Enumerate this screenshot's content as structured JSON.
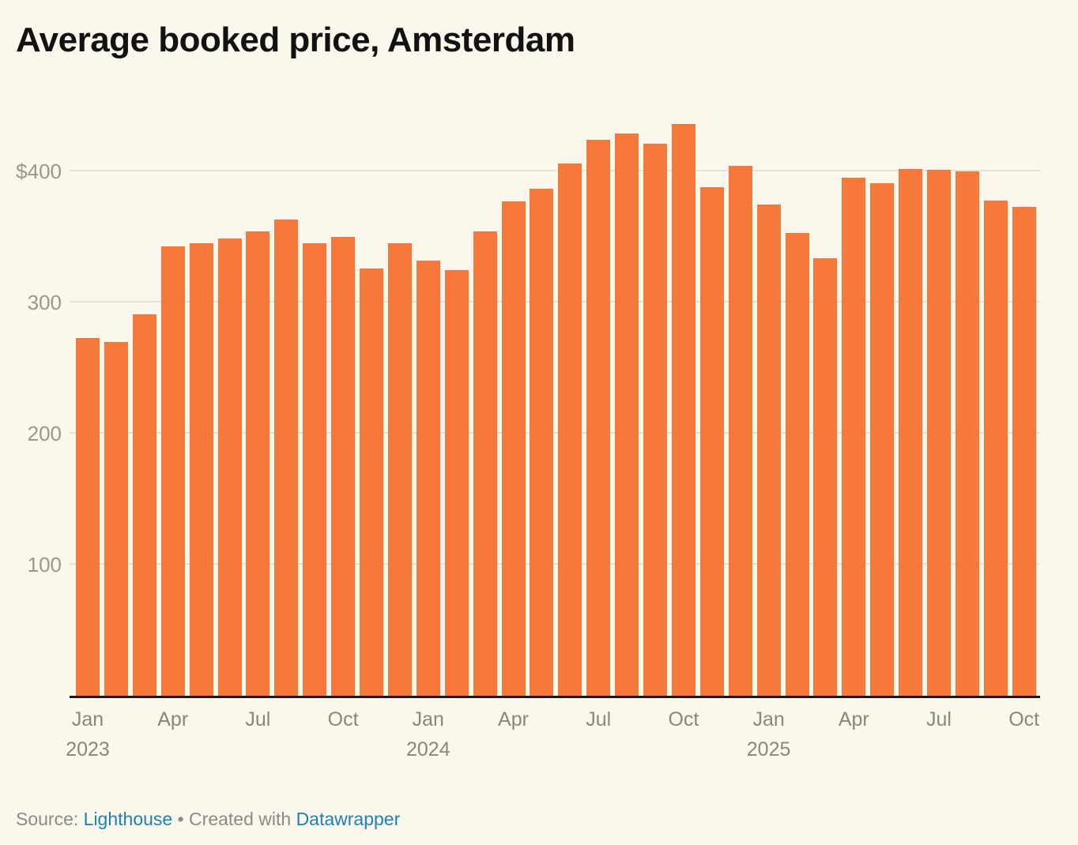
{
  "title": "Average booked price, Amsterdam",
  "footer": {
    "source_label": "Source: ",
    "source_link": "Lighthouse",
    "separator": " • ",
    "created_with_label": "Created with ",
    "tool_link": "Datawrapper"
  },
  "colors": {
    "background": "#FBF7EC",
    "bar": "#F6793B",
    "axis_line": "#1A1A1A",
    "gridline": "#E5E0D4",
    "tick_label": "#9B978C",
    "link_blue": "#1D81B5",
    "title_text": "#121212"
  },
  "chart_data": {
    "type": "bar",
    "title": "Average booked price, Amsterdam",
    "xlabel": "",
    "ylabel": "",
    "ylim": [
      0,
      450
    ],
    "grid": true,
    "legend": "none",
    "gridlines": [
      {
        "value": 100,
        "label": "100"
      },
      {
        "value": 200,
        "label": "200"
      },
      {
        "value": 300,
        "label": "300"
      },
      {
        "value": 400,
        "label": "$400"
      }
    ],
    "categories": [
      "Jan 2023",
      "Feb 2023",
      "Mar 2023",
      "Apr 2023",
      "May 2023",
      "Jun 2023",
      "Jul 2023",
      "Aug 2023",
      "Sep 2023",
      "Oct 2023",
      "Nov 2023",
      "Dec 2023",
      "Jan 2024",
      "Feb 2024",
      "Mar 2024",
      "Apr 2024",
      "May 2024",
      "Jun 2024",
      "Jul 2024",
      "Aug 2024",
      "Sep 2024",
      "Oct 2024",
      "Nov 2024",
      "Dec 2024",
      "Jan 2025",
      "Feb 2025",
      "Mar 2025",
      "Apr 2025",
      "May 2025",
      "Jun 2025",
      "Jul 2025",
      "Aug 2025",
      "Sep 2025",
      "Oct 2025"
    ],
    "values": [
      273,
      270,
      291,
      343,
      345,
      349,
      354,
      363,
      345,
      350,
      326,
      345,
      332,
      325,
      354,
      377,
      387,
      406,
      424,
      429,
      421,
      436,
      388,
      404,
      375,
      353,
      334,
      395,
      391,
      402,
      401,
      400,
      378,
      373
    ],
    "x_ticks": [
      {
        "index": 0,
        "month": "Jan",
        "year": "2023"
      },
      {
        "index": 3,
        "month": "Apr"
      },
      {
        "index": 6,
        "month": "Jul"
      },
      {
        "index": 9,
        "month": "Oct"
      },
      {
        "index": 12,
        "month": "Jan",
        "year": "2024"
      },
      {
        "index": 15,
        "month": "Apr"
      },
      {
        "index": 18,
        "month": "Jul"
      },
      {
        "index": 21,
        "month": "Oct"
      },
      {
        "index": 24,
        "month": "Jan",
        "year": "2025"
      },
      {
        "index": 27,
        "month": "Apr"
      },
      {
        "index": 30,
        "month": "Jul"
      },
      {
        "index": 33,
        "month": "Oct"
      }
    ]
  }
}
